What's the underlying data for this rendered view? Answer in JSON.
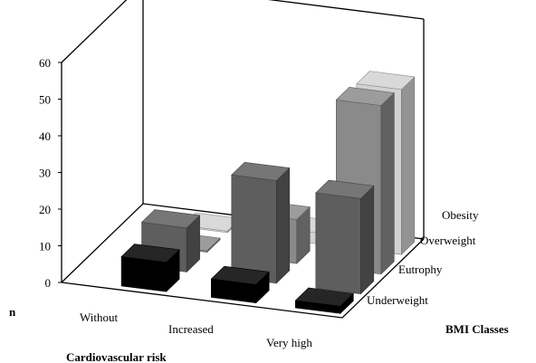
{
  "chart_data": {
    "type": "bar",
    "subtype": "3d-bar",
    "title": "",
    "ylabel": "n",
    "xlabel": "Cardiovascular risk",
    "zlabel": "BMI Classes",
    "ylim": [
      0,
      60
    ],
    "y_ticks": [
      "0",
      "10",
      "20",
      "30",
      "40",
      "50",
      "60"
    ],
    "categories": [
      "Without",
      "Increased",
      "Very high"
    ],
    "series": [
      {
        "name": "Underweight",
        "color": "#000000",
        "values": [
          8,
          5,
          2
        ]
      },
      {
        "name": "Eutrophy",
        "color": "#5e5e5e",
        "values": [
          12,
          28,
          26
        ]
      },
      {
        "name": "Overweight",
        "color": "#8a8a8a",
        "values": [
          0,
          12,
          46
        ]
      },
      {
        "name": "Obesity",
        "color": "#d2d2d2",
        "values": [
          0,
          3,
          45
        ]
      }
    ],
    "grid": false,
    "legend": "none"
  }
}
